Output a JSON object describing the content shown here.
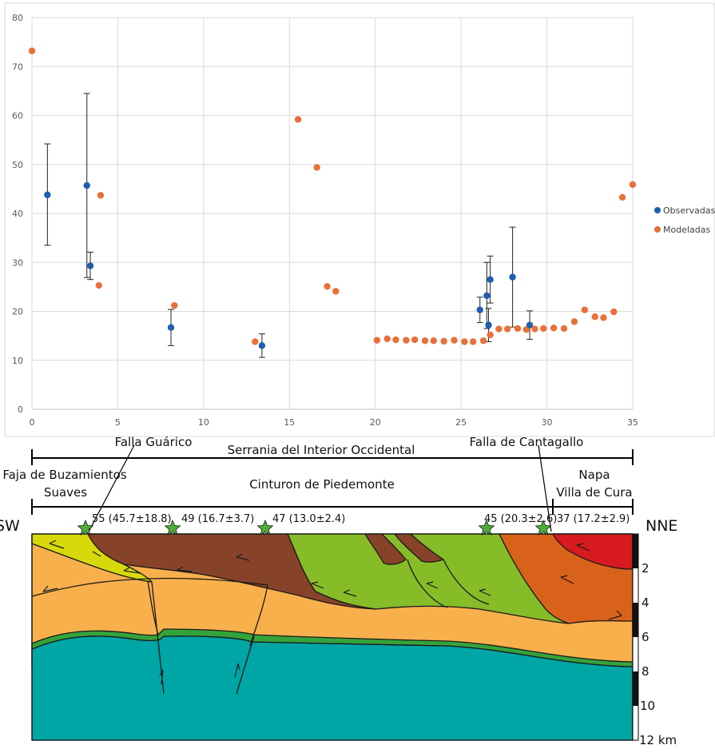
{
  "chart_data": {
    "type": "scatter",
    "x_ticks": [
      0,
      5,
      10,
      15,
      20,
      25,
      30,
      35
    ],
    "y_ticks": [
      0,
      10,
      20,
      30,
      40,
      50,
      60,
      70,
      80
    ],
    "xlim": [
      0,
      35
    ],
    "ylim": [
      0,
      80
    ],
    "grid": true,
    "legend_placement": "right",
    "series": [
      {
        "name": "Observadas",
        "color": "#1f5fad",
        "points": [
          {
            "x": 0.9,
            "y": 43.8,
            "err_lo": 33.5,
            "err_hi": 54.2
          },
          {
            "x": 3.2,
            "y": 45.7,
            "err_lo": 26.9,
            "err_hi": 64.5
          },
          {
            "x": 3.4,
            "y": 29.3,
            "err_lo": 26.5,
            "err_hi": 32.1
          },
          {
            "x": 8.1,
            "y": 16.7,
            "err_lo": 13.0,
            "err_hi": 20.4
          },
          {
            "x": 13.4,
            "y": 13.0,
            "err_lo": 10.6,
            "err_hi": 15.4
          },
          {
            "x": 26.1,
            "y": 20.3,
            "err_lo": 17.7,
            "err_hi": 22.9
          },
          {
            "x": 26.5,
            "y": 23.2,
            "err_lo": 16.5,
            "err_hi": 30.0
          },
          {
            "x": 26.6,
            "y": 17.2,
            "err_lo": 13.8,
            "err_hi": 20.6
          },
          {
            "x": 26.7,
            "y": 26.5,
            "err_lo": 21.7,
            "err_hi": 31.3
          },
          {
            "x": 28.0,
            "y": 27.0,
            "err_lo": 16.8,
            "err_hi": 37.2
          },
          {
            "x": 29.0,
            "y": 17.2,
            "err_lo": 14.3,
            "err_hi": 20.1
          }
        ]
      },
      {
        "name": "Modeladas",
        "color": "#e8703a",
        "points": [
          {
            "x": 0.0,
            "y": 73.2
          },
          {
            "x": 4.0,
            "y": 43.7
          },
          {
            "x": 3.9,
            "y": 25.3
          },
          {
            "x": 8.3,
            "y": 21.2
          },
          {
            "x": 13.0,
            "y": 13.8
          },
          {
            "x": 15.5,
            "y": 59.2
          },
          {
            "x": 16.6,
            "y": 49.4
          },
          {
            "x": 17.2,
            "y": 25.1
          },
          {
            "x": 17.7,
            "y": 24.1
          },
          {
            "x": 20.1,
            "y": 14.1
          },
          {
            "x": 20.7,
            "y": 14.4
          },
          {
            "x": 21.2,
            "y": 14.2
          },
          {
            "x": 21.8,
            "y": 14.1
          },
          {
            "x": 22.3,
            "y": 14.2
          },
          {
            "x": 22.9,
            "y": 14.0
          },
          {
            "x": 23.4,
            "y": 14.0
          },
          {
            "x": 24.0,
            "y": 13.9
          },
          {
            "x": 24.6,
            "y": 14.1
          },
          {
            "x": 25.2,
            "y": 13.8
          },
          {
            "x": 25.7,
            "y": 13.8
          },
          {
            "x": 26.3,
            "y": 14.0
          },
          {
            "x": 26.7,
            "y": 15.2
          },
          {
            "x": 27.2,
            "y": 16.4
          },
          {
            "x": 27.7,
            "y": 16.4
          },
          {
            "x": 28.3,
            "y": 16.5
          },
          {
            "x": 28.8,
            "y": 16.3
          },
          {
            "x": 29.3,
            "y": 16.4
          },
          {
            "x": 29.8,
            "y": 16.5
          },
          {
            "x": 30.4,
            "y": 16.6
          },
          {
            "x": 31.0,
            "y": 16.5
          },
          {
            "x": 31.6,
            "y": 17.9
          },
          {
            "x": 32.2,
            "y": 20.3
          },
          {
            "x": 32.8,
            "y": 18.9
          },
          {
            "x": 33.3,
            "y": 18.7
          },
          {
            "x": 33.9,
            "y": 19.9
          },
          {
            "x": 34.4,
            "y": 43.3
          },
          {
            "x": 35.0,
            "y": 45.9
          }
        ]
      }
    ]
  },
  "section": {
    "faults": [
      "Falla Guárico",
      "Falla de Cantagallo"
    ],
    "regions": {
      "serrania": "Serrania del Interior Occidental",
      "faja_line1": "Faja de Buzamientos",
      "faja_line2": "Suaves",
      "cinturon": "Cinturon de Piedemonte",
      "napa_line1": "Napa",
      "napa_line2": "Villa de Cura"
    },
    "sw_label": "SW",
    "nne_label": "NNE",
    "stations": [
      "55 (45.7±18.8)",
      "49 (16.7±3.7)",
      "47 (13.0±2.4)",
      "45 (20.3±2.6)",
      "37 (17.2±2.9)"
    ],
    "depth_labels": [
      "2",
      "4",
      "6",
      "8",
      "10",
      "12 km"
    ],
    "colors": {
      "yellow": "#d7d90a",
      "brown": "#87432a",
      "light_orange": "#f8b04c",
      "green": "#87bc29",
      "dark_orange": "#d9621b",
      "red": "#d71920",
      "teal": "#00a5a5",
      "thin_green": "#35a33c",
      "star": "#4cad37"
    }
  }
}
